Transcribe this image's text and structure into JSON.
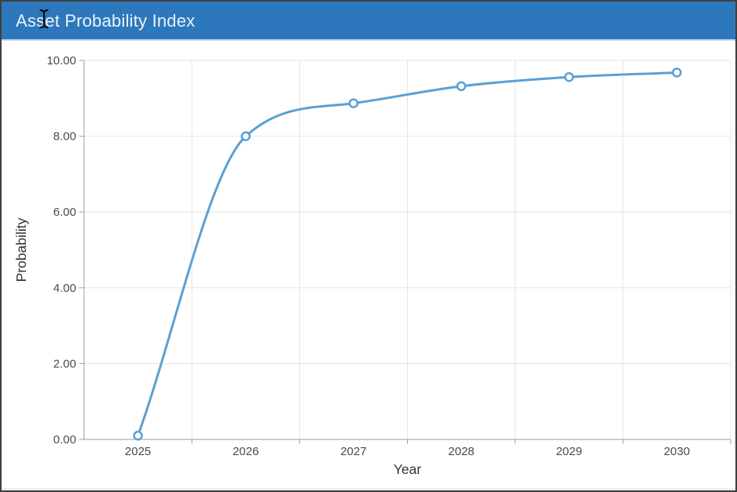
{
  "window": {
    "border_color": "#3f3f3f",
    "background": "#ffffff"
  },
  "header": {
    "title": "Asset Probability Index",
    "background": "#2d78bc",
    "text_color": "#edf2f8",
    "cursor_icon": "text-ibeam"
  },
  "chart_data": {
    "type": "line",
    "title": "Asset Probability Index",
    "categories": [
      "2025",
      "2026",
      "2027",
      "2028",
      "2029",
      "2030"
    ],
    "series": [
      {
        "name": "Probability",
        "values": [
          0.1,
          8.0,
          8.87,
          9.32,
          9.56,
          9.68
        ]
      }
    ],
    "xlabel": "Year",
    "ylabel": "Probability",
    "ylim": [
      0,
      10
    ],
    "y_tick_labels": [
      "0.00",
      "2.00",
      "4.00",
      "6.00",
      "8.00",
      "10.00"
    ],
    "grid": true,
    "legend": false,
    "smooth": true,
    "marker": "open-circle",
    "colors": {
      "line": "#5ba0d4",
      "marker_fill": "#ffffff",
      "grid": "#e4e4e4",
      "axis": "#9f9f9f",
      "tick_label": "#4a4a4a",
      "axis_title": "#333333"
    }
  }
}
